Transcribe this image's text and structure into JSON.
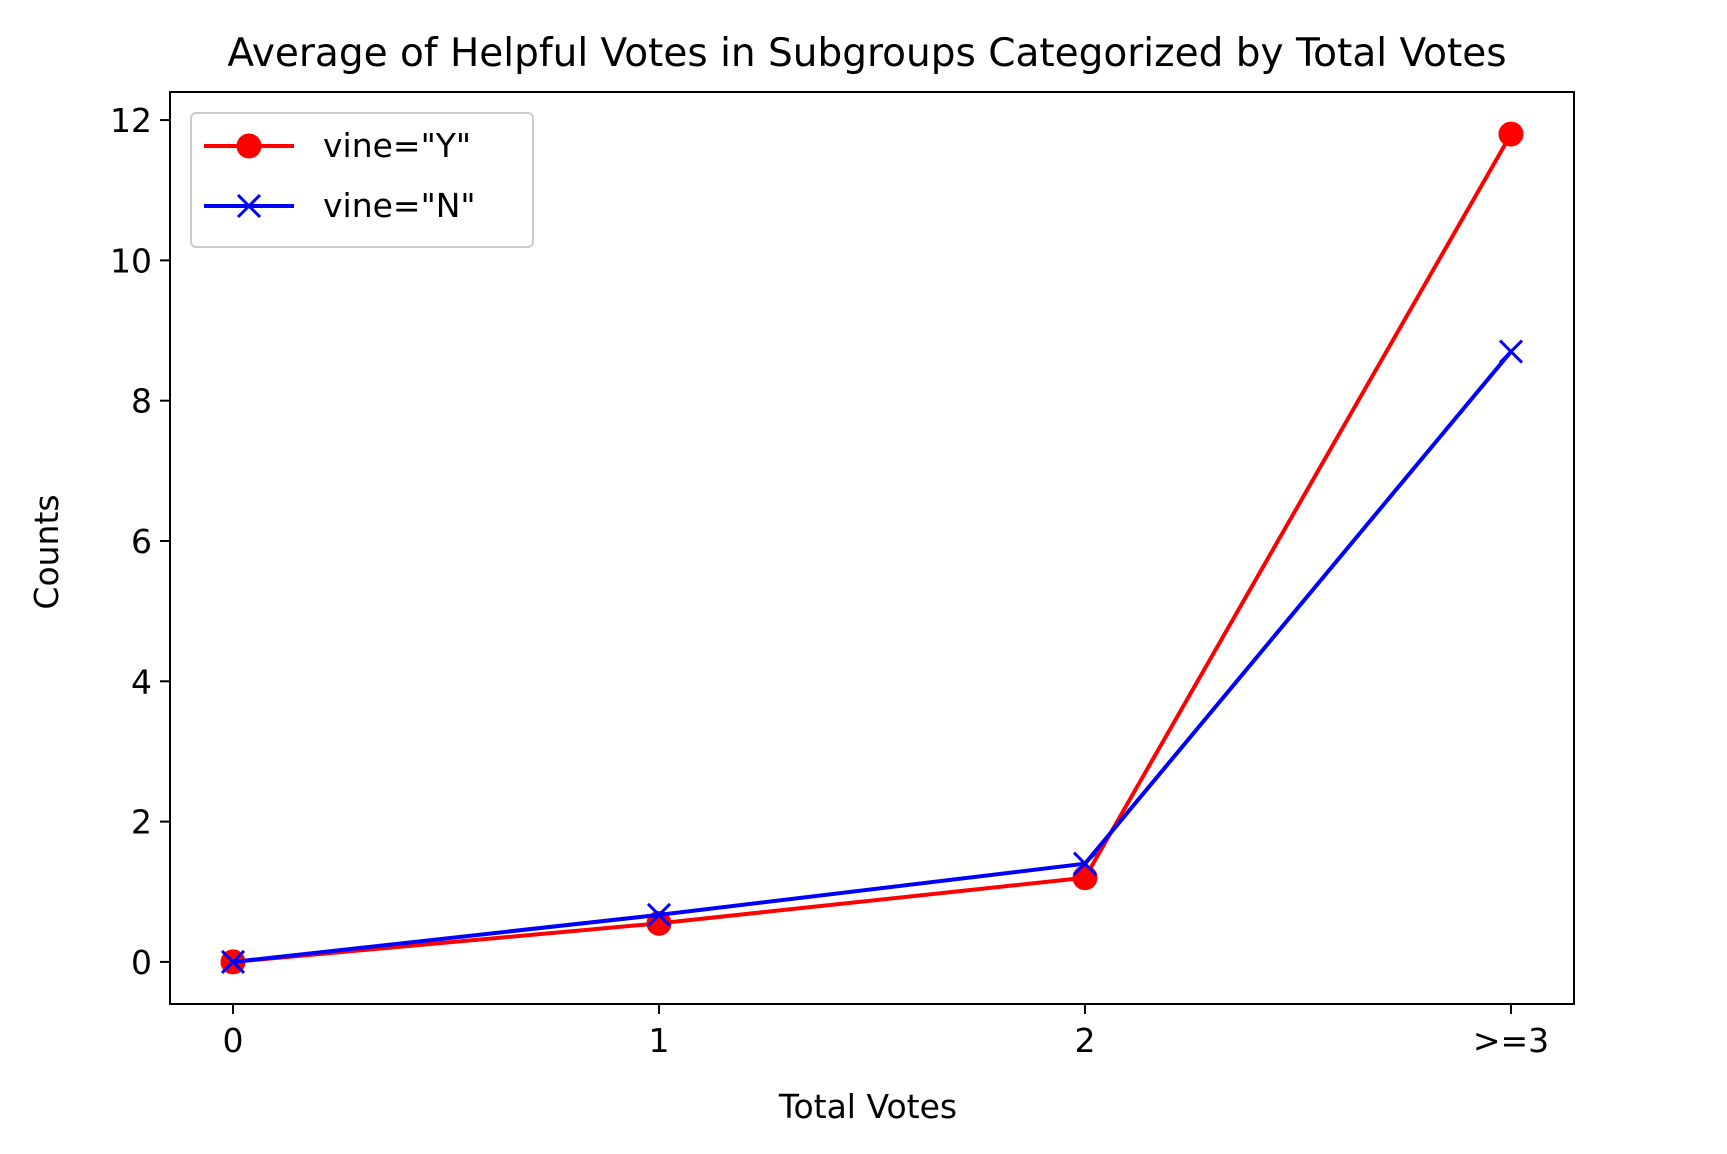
{
  "chart_data": {
    "type": "line",
    "title": "Average of Helpful Votes in Subgroups Categorized by Total Votes",
    "xlabel": "Total Votes",
    "ylabel": "Counts",
    "categories": [
      "0",
      "1",
      "2",
      ">=3"
    ],
    "ylim": [
      -0.6,
      12.4
    ],
    "yticks": [
      0,
      2,
      4,
      6,
      8,
      10,
      12
    ],
    "grid": false,
    "legend_position": "top-left",
    "series": [
      {
        "name": "vine=\"Y\"",
        "color": "#ff0000",
        "marker": "circle",
        "values": [
          0.0,
          0.55,
          1.2,
          11.8
        ]
      },
      {
        "name": "vine=\"N\"",
        "color": "#0000ff",
        "marker": "x",
        "values": [
          0.0,
          0.67,
          1.4,
          8.7
        ]
      }
    ]
  }
}
